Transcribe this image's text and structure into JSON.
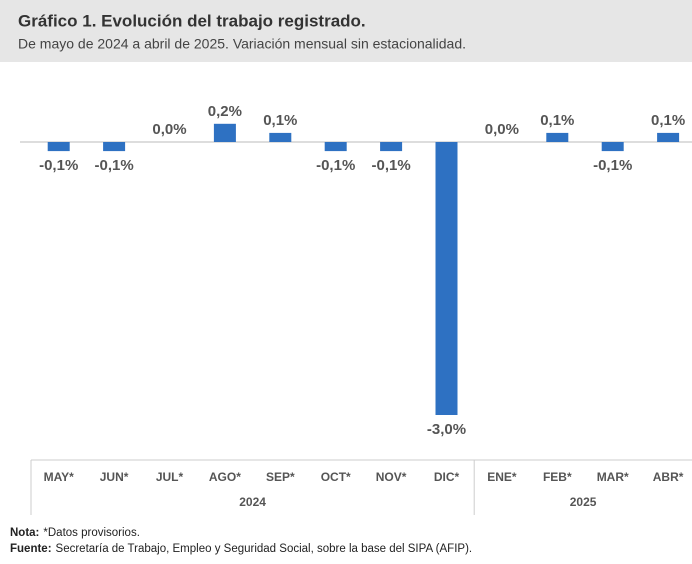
{
  "chart_data": {
    "type": "bar",
    "title": "Gráfico 1. Evolución del trabajo registrado.",
    "subtitle": "De mayo de 2024 a abril de 2025. Variación mensual sin estacionalidad.",
    "color": "#2e71c2",
    "groups": [
      {
        "label": "2024",
        "categories": [
          "MAY*",
          "JUN*",
          "JUL*",
          "AGO*",
          "SEP*",
          "OCT*",
          "NOV*",
          "DIC*"
        ],
        "values": [
          -0.1,
          -0.1,
          0.0,
          0.2,
          0.1,
          -0.1,
          -0.1,
          -3.0
        ],
        "value_labels": [
          "-0,1%",
          "-0,1%",
          "0,0%",
          "0,2%",
          "0,1%",
          "-0,1%",
          "-0,1%",
          "-3,0%"
        ]
      },
      {
        "label": "2025",
        "categories": [
          "ENE*",
          "FEB*",
          "MAR*",
          "ABR*"
        ],
        "values": [
          0.0,
          0.1,
          -0.1,
          0.1
        ],
        "value_labels": [
          "0,0%",
          "0,1%",
          "-0,1%",
          "0,1%"
        ]
      }
    ]
  },
  "notes": [
    {
      "label": "Nota:",
      "text": "*Datos provisorios."
    },
    {
      "label": "Fuente:",
      "text": "Secretaría de Trabajo, Empleo y Seguridad Social, sobre la base del SIPA (AFIP)."
    }
  ]
}
